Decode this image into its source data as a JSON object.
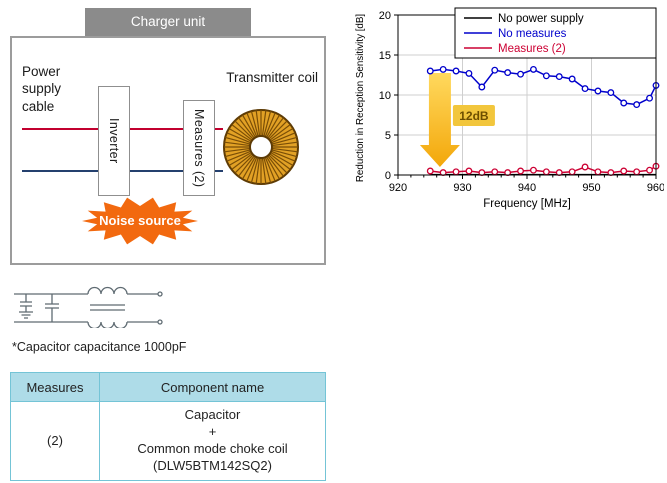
{
  "charger_unit": {
    "title": "Charger unit",
    "power_supply_cable": "Power supply cable",
    "inverter": "Inverter",
    "measures": "Measures (2)",
    "transmitter_coil": "Transmitter coil",
    "noise_source": "Noise source"
  },
  "capacitor_note": "*Capacitor capacitance 1000pF",
  "measures_table": {
    "headers": [
      "Measures",
      "Component name"
    ],
    "rows": [
      {
        "measures": "(2)",
        "component": "Capacitor\n+\nCommon mode choke coil\n(DLW5BTM142SQ2)"
      }
    ]
  },
  "chart_data": {
    "type": "line",
    "title": "",
    "xlabel": "Frequency [MHz]",
    "ylabel": "Reduction in Reception Sensitivity [dB]",
    "xlim": [
      920,
      960
    ],
    "ylim": [
      0,
      20
    ],
    "xticks": [
      920,
      930,
      940,
      950,
      960
    ],
    "yticks": [
      0,
      5,
      10,
      15,
      20
    ],
    "grid": true,
    "legend_position": "top-right",
    "annotation": {
      "label": "12dB",
      "arrow": "down",
      "at_x": 926.5,
      "from_y": 13,
      "to_y": 1
    },
    "x": [
      925,
      927,
      929,
      931,
      933,
      935,
      937,
      939,
      941,
      943,
      945,
      947,
      949,
      951,
      953,
      955,
      957,
      959,
      960
    ],
    "series": [
      {
        "name": "No power supply",
        "color": "#000000",
        "markers": false,
        "y": [
          0.05,
          0.05,
          0.05,
          0.05,
          0.05,
          0.05,
          0.05,
          0.05,
          0.05,
          0.05,
          0.05,
          0.05,
          0.05,
          0.05,
          0.05,
          0.05,
          0.05,
          0.05,
          0.05
        ]
      },
      {
        "name": "No measures",
        "color": "#0000cc",
        "markers": true,
        "y": [
          13.0,
          13.2,
          13.0,
          12.7,
          11.0,
          13.1,
          12.8,
          12.6,
          13.2,
          12.4,
          12.3,
          12.0,
          10.8,
          10.5,
          10.3,
          9.0,
          8.8,
          9.6,
          11.2
        ]
      },
      {
        "name": "Measures (2)",
        "color": "#cc0033",
        "markers": true,
        "y": [
          0.5,
          0.3,
          0.4,
          0.5,
          0.3,
          0.4,
          0.3,
          0.5,
          0.6,
          0.4,
          0.3,
          0.4,
          1.0,
          0.4,
          0.3,
          0.5,
          0.4,
          0.6,
          1.1
        ]
      }
    ]
  }
}
